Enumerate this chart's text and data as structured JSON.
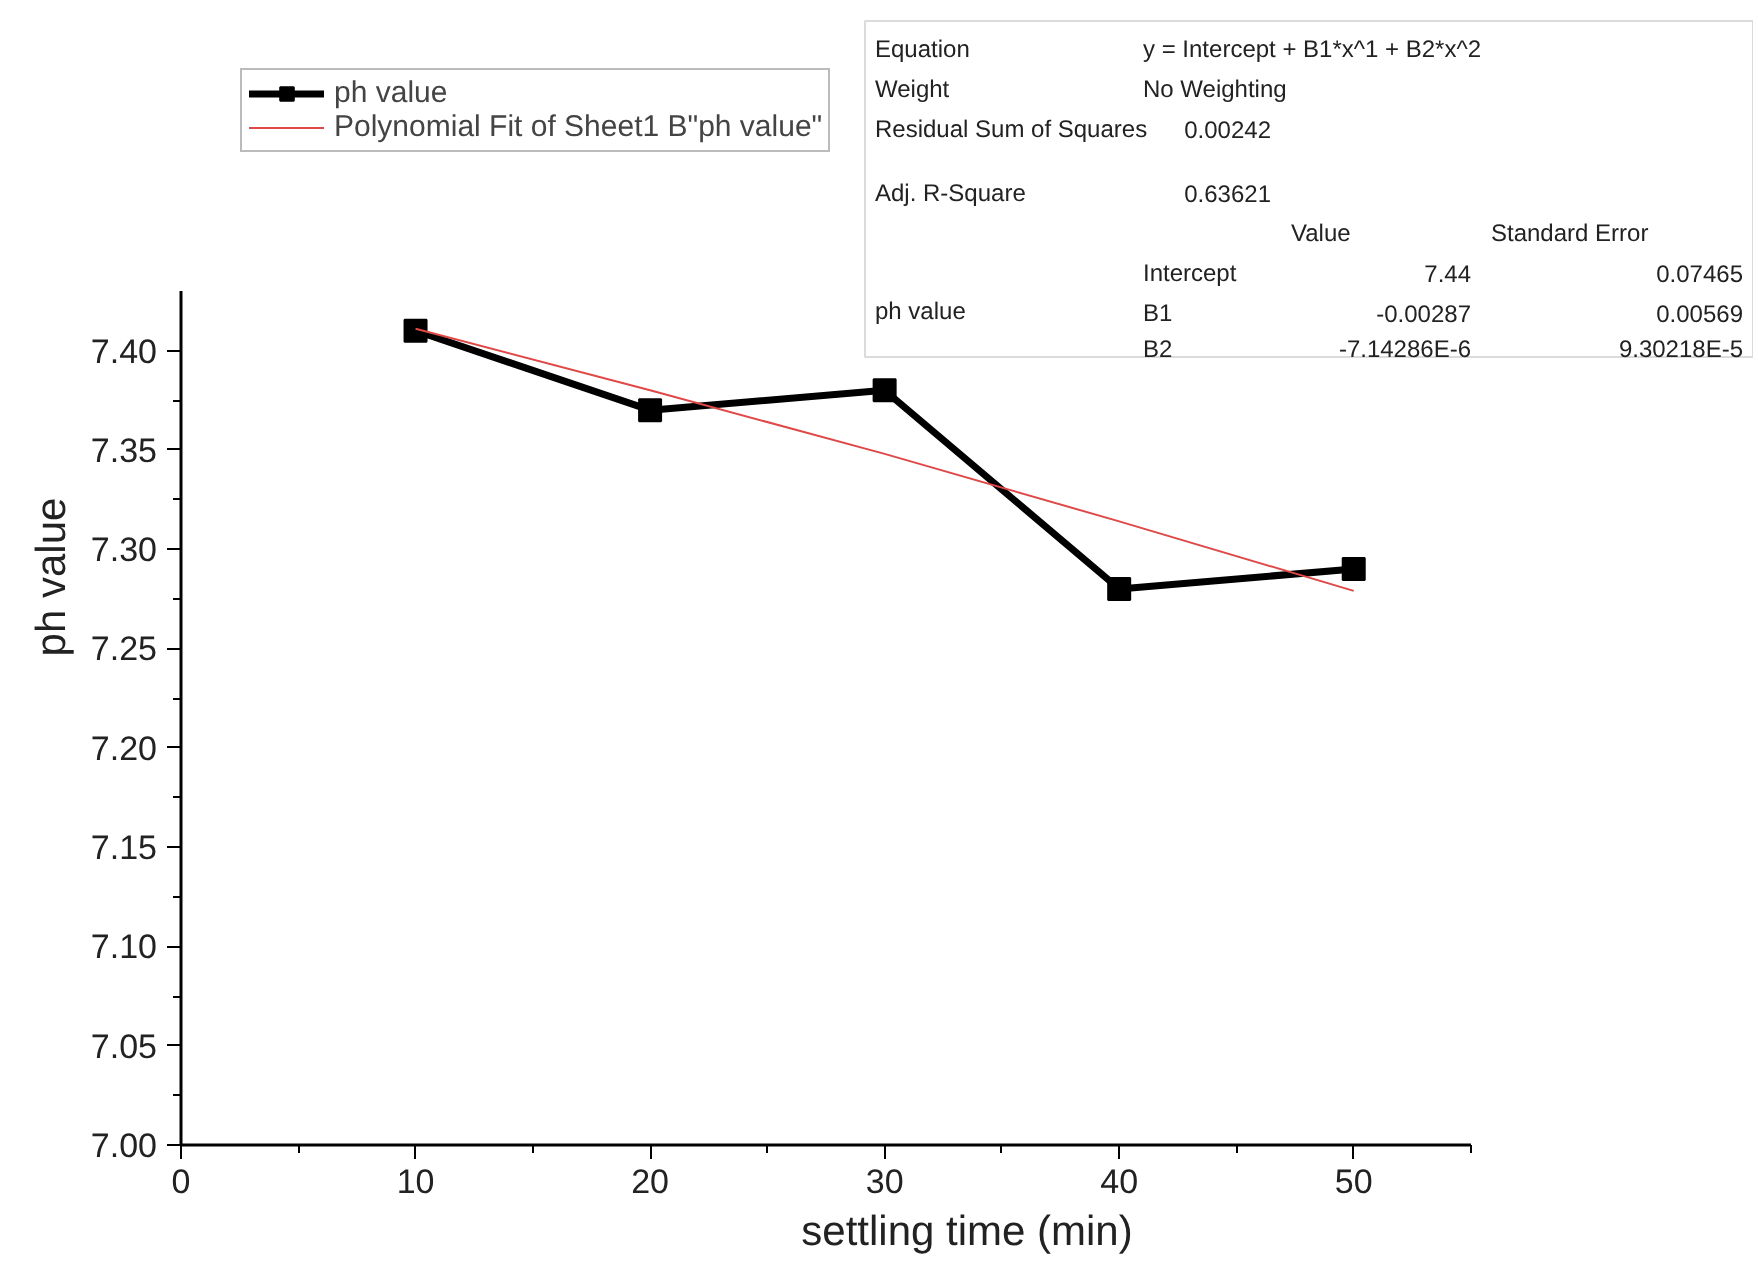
{
  "chart_data": {
    "type": "line",
    "xlabel": "settling time (min)",
    "ylabel": "ph value",
    "x": [
      10,
      20,
      30,
      40,
      50
    ],
    "series": [
      {
        "name": "ph value",
        "color": "#000000",
        "values": [
          7.41,
          7.37,
          7.38,
          7.28,
          7.29
        ],
        "marker": "square"
      },
      {
        "name": "Polynomial Fit of Sheet1 B\"ph value\"",
        "color": "#e04848",
        "x": [
          10,
          20,
          30,
          40,
          50
        ],
        "values": [
          7.411,
          7.38,
          7.348,
          7.314,
          7.279
        ],
        "marker": "none"
      }
    ],
    "xlim": [
      0,
      55
    ],
    "xticks": [
      0,
      10,
      20,
      30,
      40,
      50
    ],
    "ylim": [
      7.0,
      7.43
    ],
    "yticks": [
      {
        "value": 7.0,
        "label": "7.00"
      },
      {
        "value": 7.05,
        "label": "7.05"
      },
      {
        "value": 7.1,
        "label": "7.10"
      },
      {
        "value": 7.15,
        "label": "7.15"
      },
      {
        "value": 7.2,
        "label": "7.20"
      },
      {
        "value": 7.25,
        "label": "7.25"
      },
      {
        "value": 7.3,
        "label": "7.30"
      },
      {
        "value": 7.35,
        "label": "7.35"
      },
      {
        "value": 7.4,
        "label": "7.40"
      }
    ],
    "grid": false,
    "legend": "top left",
    "annotations": [
      "Equation",
      "y = Intercept + B1*x^1 + B2*x^2",
      "Weight",
      "No Weighting",
      "Residual Sum of Squares",
      "0.00242",
      "Adj. R-Square",
      "0.63621",
      "Value",
      "Standard Error",
      "ph value",
      "Intercept",
      "7.44",
      "0.07465",
      "B1",
      "-0.00287",
      "0.00569",
      "B2",
      "-7.14286E-6",
      "9.30218E-5"
    ]
  }
}
